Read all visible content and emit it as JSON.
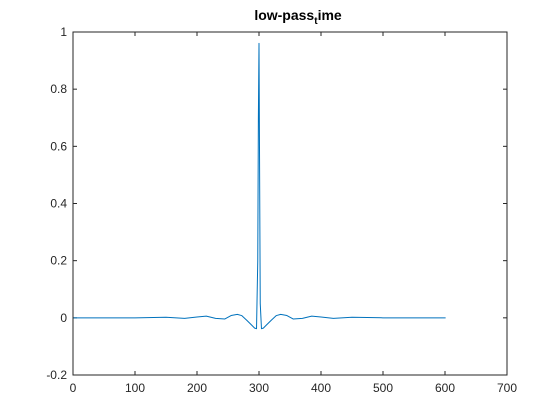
{
  "chart_data": {
    "type": "line",
    "title": {
      "main": "low-pass",
      "subscript": "t",
      "rest": "ime"
    },
    "xlabel": "",
    "ylabel": "",
    "xlim": [
      0,
      700
    ],
    "ylim": [
      -0.2,
      1
    ],
    "xticks": [
      0,
      100,
      200,
      300,
      400,
      500,
      600,
      700
    ],
    "yticks": [
      -0.2,
      0,
      0.2,
      0.4,
      0.6,
      0.8,
      1
    ],
    "xtick_labels": [
      "0",
      "100",
      "200",
      "300",
      "400",
      "500",
      "600",
      "700"
    ],
    "ytick_labels": [
      "-0.2",
      "0",
      "0.2",
      "0.4",
      "0.6",
      "0.8",
      "1"
    ],
    "grid": false,
    "box": true,
    "series": [
      {
        "color": "#0072BD",
        "x": [
          0,
          100,
          150,
          180,
          200,
          215,
          230,
          245,
          255,
          265,
          272,
          280,
          288,
          293,
          296,
          298,
          299,
          300,
          301,
          302,
          304,
          307,
          312,
          320,
          328,
          335,
          345,
          355,
          370,
          385,
          400,
          420,
          450,
          500,
          550,
          601
        ],
        "y": [
          0,
          0,
          0.002,
          -0.002,
          0.003,
          0.006,
          -0.002,
          -0.004,
          0.008,
          0.012,
          0.008,
          -0.008,
          -0.025,
          -0.036,
          -0.038,
          0.2,
          0.7,
          0.96,
          0.5,
          0.05,
          -0.038,
          -0.036,
          -0.025,
          -0.008,
          0.008,
          0.012,
          0.008,
          -0.004,
          -0.002,
          0.006,
          0.003,
          -0.002,
          0.002,
          0,
          0,
          0
        ]
      }
    ]
  }
}
